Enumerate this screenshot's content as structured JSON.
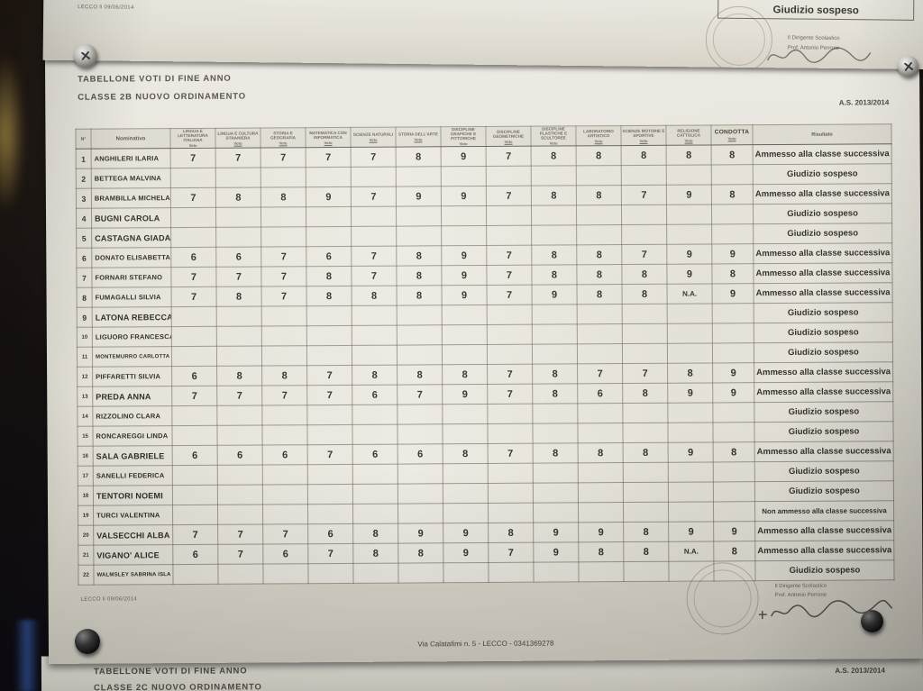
{
  "photo": {
    "top_sheet": {
      "date_line": "LECCO li 09/06/2014",
      "giudizio_cell": "Giudizio sospeso",
      "signature_title": "Il Dirigente Scolastico",
      "signature_name": "Prof. Antonio Perrone"
    },
    "main_sheet": {
      "title_line1": "TABELLONE VOTI DI FINE ANNO",
      "title_line2": "CLASSE 2B NUOVO ORDINAMENTO",
      "school_year": "A.S. 2013/2014",
      "date_line": "LECCO li 09/06/2014",
      "signature_title": "Il Dirigente Scolastico",
      "signature_name": "Prof. Antonio Perrone",
      "footer_address": "Via Calatafimi n. 5 - LECCO - 0341369278"
    },
    "bottom_sheet": {
      "title_line1": "TABELLONE VOTI DI FINE ANNO",
      "title_line2": "CLASSE 2C NUOVO ORDINAMENTO",
      "school_year": "A.S. 2013/2014"
    }
  },
  "table": {
    "col_num_header": "N°",
    "col_name_header": "Nominativo",
    "col_result_header": "Risultato",
    "vote_sublabel": "Voto",
    "subjects": [
      "LINGUA E LETTERATURA ITALIANA",
      "LINGUA E CULTURA STRANIERA",
      "STORIA E GEOGRAFIA",
      "MATEMATICA CON INFORMATICA",
      "SCIENZE NATURALI",
      "STORIA DELL'ARTE",
      "DISCIPLINE GRAFICHE E PITTORICHE",
      "DISCIPLINE GEOMETRICHE",
      "DISCIPLINE PLASTICHE E SCULTOREE",
      "LABORATORIO ARTISTICO",
      "SCIENZE MOTORIE E SPORTIVE",
      "RELIGIONE CATTOLICA",
      "CONDOTTA"
    ],
    "rows": [
      {
        "n": "1",
        "name": "ANGHILERI ILARIA",
        "grades": [
          "7",
          "7",
          "7",
          "7",
          "7",
          "8",
          "9",
          "7",
          "8",
          "8",
          "8",
          "8",
          "8"
        ],
        "result": "Ammesso alla classe successiva"
      },
      {
        "n": "2",
        "name": "BETTEGA MALVINA",
        "grades": [
          "",
          "",
          "",
          "",
          "",
          "",
          "",
          "",
          "",
          "",
          "",
          "",
          ""
        ],
        "result": "Giudizio sospeso"
      },
      {
        "n": "3",
        "name": "BRAMBILLA MICHELA",
        "grades": [
          "7",
          "8",
          "8",
          "9",
          "7",
          "9",
          "9",
          "7",
          "8",
          "8",
          "7",
          "9",
          "8"
        ],
        "result": "Ammesso alla classe successiva"
      },
      {
        "n": "4",
        "name": "BUGNI CAROLA",
        "grades": [
          "",
          "",
          "",
          "",
          "",
          "",
          "",
          "",
          "",
          "",
          "",
          "",
          ""
        ],
        "result": "Giudizio sospeso"
      },
      {
        "n": "5",
        "name": "CASTAGNA GIADA",
        "grades": [
          "",
          "",
          "",
          "",
          "",
          "",
          "",
          "",
          "",
          "",
          "",
          "",
          ""
        ],
        "result": "Giudizio sospeso"
      },
      {
        "n": "6",
        "name": "DONATO ELISABETTA",
        "grades": [
          "6",
          "6",
          "7",
          "6",
          "7",
          "8",
          "9",
          "7",
          "8",
          "8",
          "7",
          "9",
          "9"
        ],
        "result": "Ammesso alla classe successiva"
      },
      {
        "n": "7",
        "name": "FORNARI STEFANO",
        "grades": [
          "7",
          "7",
          "7",
          "8",
          "7",
          "8",
          "9",
          "7",
          "8",
          "8",
          "8",
          "9",
          "8"
        ],
        "result": "Ammesso alla classe successiva"
      },
      {
        "n": "8",
        "name": "FUMAGALLI SILVIA",
        "grades": [
          "7",
          "8",
          "7",
          "8",
          "8",
          "8",
          "9",
          "7",
          "9",
          "8",
          "8",
          "N.A.",
          "9"
        ],
        "result": "Ammesso alla classe successiva"
      },
      {
        "n": "9",
        "name": "LATONA REBECCA",
        "grades": [
          "",
          "",
          "",
          "",
          "",
          "",
          "",
          "",
          "",
          "",
          "",
          "",
          ""
        ],
        "result": "Giudizio sospeso"
      },
      {
        "n": "10",
        "name": "LIGUORO FRANCESCA",
        "grades": [
          "",
          "",
          "",
          "",
          "",
          "",
          "",
          "",
          "",
          "",
          "",
          "",
          ""
        ],
        "result": "Giudizio sospeso"
      },
      {
        "n": "11",
        "name": "MONTEMURRO CARLOTTA",
        "grades": [
          "",
          "",
          "",
          "",
          "",
          "",
          "",
          "",
          "",
          "",
          "",
          "",
          ""
        ],
        "result": "Giudizio sospeso"
      },
      {
        "n": "12",
        "name": "PIFFARETTI SILVIA",
        "grades": [
          "6",
          "8",
          "8",
          "7",
          "8",
          "8",
          "8",
          "7",
          "8",
          "7",
          "7",
          "8",
          "9"
        ],
        "result": "Ammesso alla classe successiva"
      },
      {
        "n": "13",
        "name": "PREDA ANNA",
        "grades": [
          "7",
          "7",
          "7",
          "7",
          "6",
          "7",
          "9",
          "7",
          "8",
          "6",
          "8",
          "9",
          "9"
        ],
        "result": "Ammesso alla classe successiva"
      },
      {
        "n": "14",
        "name": "RIZZOLINO CLARA",
        "grades": [
          "",
          "",
          "",
          "",
          "",
          "",
          "",
          "",
          "",
          "",
          "",
          "",
          ""
        ],
        "result": "Giudizio sospeso"
      },
      {
        "n": "15",
        "name": "RONCAREGGI LINDA",
        "grades": [
          "",
          "",
          "",
          "",
          "",
          "",
          "",
          "",
          "",
          "",
          "",
          "",
          ""
        ],
        "result": "Giudizio sospeso"
      },
      {
        "n": "16",
        "name": "SALA GABRIELE",
        "grades": [
          "6",
          "6",
          "6",
          "7",
          "6",
          "6",
          "8",
          "7",
          "8",
          "8",
          "8",
          "9",
          "8"
        ],
        "result": "Ammesso alla classe successiva"
      },
      {
        "n": "17",
        "name": "SANELLI FEDERICA",
        "grades": [
          "",
          "",
          "",
          "",
          "",
          "",
          "",
          "",
          "",
          "",
          "",
          "",
          ""
        ],
        "result": "Giudizio sospeso"
      },
      {
        "n": "18",
        "name": "TENTORI NOEMI",
        "grades": [
          "",
          "",
          "",
          "",
          "",
          "",
          "",
          "",
          "",
          "",
          "",
          "",
          ""
        ],
        "result": "Giudizio sospeso"
      },
      {
        "n": "19",
        "name": "TURCI VALENTINA",
        "grades": [
          "",
          "",
          "",
          "",
          "",
          "",
          "",
          "",
          "",
          "",
          "",
          "",
          ""
        ],
        "result": "Non ammesso alla classe successiva"
      },
      {
        "n": "20",
        "name": "VALSECCHI ALBA",
        "grades": [
          "7",
          "7",
          "7",
          "6",
          "8",
          "9",
          "9",
          "8",
          "9",
          "9",
          "8",
          "9",
          "9"
        ],
        "result": "Ammesso alla classe successiva"
      },
      {
        "n": "21",
        "name": "VIGANO' ALICE",
        "grades": [
          "6",
          "7",
          "6",
          "7",
          "8",
          "8",
          "9",
          "7",
          "9",
          "8",
          "8",
          "N.A.",
          "8"
        ],
        "result": "Ammesso alla classe successiva"
      },
      {
        "n": "22",
        "name": "WALMSLEY SABRINA ISLA",
        "grades": [
          "",
          "",
          "",
          "",
          "",
          "",
          "",
          "",
          "",
          "",
          "",
          "",
          ""
        ],
        "result": "Giudizio sospeso"
      }
    ]
  }
}
